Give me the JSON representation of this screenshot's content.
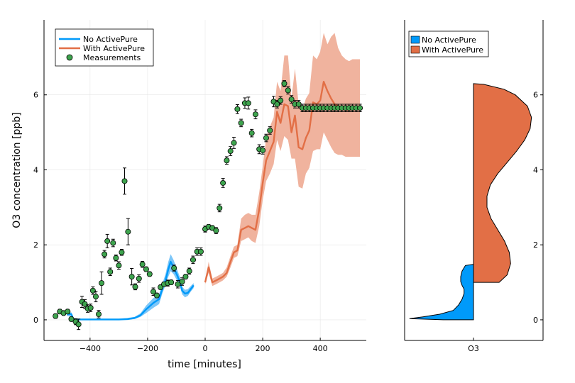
{
  "chart_data": [
    {
      "type": "line",
      "xlabel": "time [minutes]",
      "ylabel": "O3 concentration [ppb]",
      "xlim": [
        -560,
        560
      ],
      "ylim": [
        -0.55,
        8.0
      ],
      "xticks": [
        -400,
        -200,
        0,
        200,
        400
      ],
      "xtick_labels": [
        "−400",
        "−200",
        "0",
        "200",
        "400"
      ],
      "yticks": [
        0,
        2,
        4,
        6
      ],
      "ytick_labels": [
        "0",
        "2",
        "4",
        "6"
      ],
      "grid": true,
      "legend_position": "top-left",
      "legend": [
        "No ActivePure",
        "With ActivePure",
        "Measurements"
      ],
      "colors": {
        "no_activepure": "#009AFA",
        "with_activepure": "#E26F46",
        "measurements": "#3EA44E",
        "band_no": "#7CC6F8",
        "band_with": "#F0B39E"
      },
      "series": [
        {
          "name": "No ActivePure",
          "x": [
            -480,
            -465,
            -458,
            -445,
            -400,
            -300,
            -270,
            -245,
            -225,
            -205,
            -180,
            -160,
            -148,
            -138,
            -128,
            -120,
            -110,
            -98,
            -88,
            -80,
            -70,
            -60,
            -50,
            -40
          ],
          "y": [
            0.15,
            0.15,
            0.02,
            0.01,
            0.01,
            0.01,
            0.02,
            0.05,
            0.12,
            0.28,
            0.45,
            0.55,
            0.85,
            1.05,
            1.35,
            1.55,
            1.4,
            1.2,
            1.02,
            0.78,
            0.7,
            0.72,
            0.82,
            0.92
          ],
          "lower": [
            0.1,
            0.1,
            0.0,
            0.0,
            0.0,
            0.0,
            0.0,
            0.02,
            0.08,
            0.18,
            0.32,
            0.42,
            0.72,
            0.92,
            1.15,
            1.3,
            1.22,
            1.05,
            0.9,
            0.68,
            0.6,
            0.64,
            0.75,
            0.85
          ],
          "upper": [
            0.2,
            0.2,
            0.05,
            0.03,
            0.03,
            0.03,
            0.05,
            0.08,
            0.17,
            0.38,
            0.58,
            0.68,
            0.98,
            1.22,
            1.55,
            1.75,
            1.6,
            1.35,
            1.15,
            0.88,
            0.8,
            0.82,
            0.9,
            0.98
          ]
        },
        {
          "name": "With ActivePure",
          "x": [
            0,
            12,
            25,
            38,
            50,
            62,
            75,
            88,
            100,
            112,
            125,
            138,
            150,
            162,
            175,
            188,
            200,
            212,
            225,
            238,
            250,
            262,
            275,
            288,
            300,
            312,
            325,
            338,
            350,
            362,
            375,
            388,
            400,
            412,
            425,
            438,
            450,
            462,
            475,
            488,
            500,
            512,
            525,
            538
          ],
          "y": [
            1.0,
            1.4,
            1.0,
            1.05,
            1.1,
            1.15,
            1.25,
            1.55,
            1.8,
            1.85,
            2.4,
            2.45,
            2.5,
            2.45,
            2.4,
            2.95,
            3.65,
            4.25,
            4.5,
            4.75,
            5.55,
            5.25,
            5.75,
            5.7,
            5.0,
            5.45,
            4.6,
            4.55,
            4.85,
            5.05,
            5.8,
            5.75,
            5.85,
            6.35,
            6.1,
            5.9,
            5.75,
            5.7,
            5.65,
            5.6,
            5.6,
            5.65,
            5.65,
            5.65
          ],
          "lower": [
            0.95,
            1.25,
            0.9,
            0.95,
            1.0,
            1.05,
            1.15,
            1.4,
            1.65,
            1.7,
            2.1,
            2.15,
            2.2,
            2.1,
            2.05,
            2.5,
            3.2,
            3.7,
            3.9,
            4.15,
            4.8,
            4.5,
            4.9,
            4.8,
            4.3,
            4.3,
            3.55,
            3.5,
            3.9,
            4.05,
            4.5,
            4.55,
            4.55,
            5.0,
            4.8,
            4.6,
            4.45,
            4.4,
            4.4,
            4.35,
            4.35,
            4.35,
            4.35,
            4.35
          ],
          "upper": [
            1.05,
            1.55,
            1.1,
            1.15,
            1.2,
            1.25,
            1.4,
            1.7,
            1.95,
            2.0,
            2.7,
            2.8,
            2.85,
            2.8,
            2.8,
            3.4,
            4.1,
            4.85,
            5.15,
            5.4,
            6.35,
            6.1,
            7.05,
            7.05,
            5.9,
            6.7,
            5.75,
            5.6,
            5.9,
            6.05,
            7.05,
            6.95,
            7.15,
            7.65,
            7.35,
            7.55,
            7.65,
            7.25,
            7.05,
            6.95,
            6.9,
            6.95,
            6.95,
            6.95
          ]
        },
        {
          "name": "Measurements",
          "x": [
            -520,
            -505,
            -492,
            -478,
            -465,
            -450,
            -440,
            -428,
            -418,
            -408,
            -398,
            -390,
            -380,
            -370,
            -360,
            -350,
            -340,
            -330,
            -320,
            -310,
            -300,
            -290,
            -280,
            -268,
            -255,
            -243,
            -230,
            -218,
            -205,
            -193,
            -180,
            -168,
            -155,
            -143,
            -130,
            -118,
            -108,
            -95,
            -80,
            -68,
            -55,
            -42,
            -28,
            -15,
            0,
            12,
            25,
            38,
            50,
            62,
            75,
            88,
            100,
            112,
            125,
            138,
            150,
            162,
            175,
            188,
            200,
            212,
            225,
            238,
            250,
            262,
            275,
            288,
            300,
            312,
            325,
            338,
            350,
            362,
            375,
            388,
            400,
            412,
            425,
            438,
            450,
            462,
            475,
            488,
            500,
            512,
            525,
            538
          ],
          "y": [
            0.1,
            0.22,
            0.18,
            0.22,
            0.02,
            -0.05,
            -0.12,
            0.48,
            0.42,
            0.3,
            0.32,
            0.78,
            0.62,
            0.15,
            0.98,
            1.75,
            2.1,
            1.28,
            2.05,
            1.65,
            1.45,
            1.8,
            3.7,
            2.35,
            1.15,
            0.88,
            1.1,
            1.48,
            1.35,
            1.22,
            0.75,
            0.65,
            0.87,
            0.95,
            0.98,
            1.0,
            1.38,
            0.95,
            1.02,
            1.15,
            1.3,
            1.6,
            1.82,
            1.82,
            2.42,
            2.48,
            2.45,
            2.38,
            2.98,
            3.65,
            4.25,
            4.5,
            4.72,
            5.62,
            5.25,
            5.78,
            5.78,
            4.98,
            5.48,
            4.55,
            4.52,
            4.85,
            5.05,
            5.82,
            5.75,
            5.85,
            6.3,
            6.12,
            5.88,
            5.75,
            5.75,
            5.65,
            5.65,
            5.65,
            5.65,
            5.65,
            5.65,
            5.65,
            5.65,
            5.65,
            5.65,
            5.65,
            5.65,
            5.65,
            5.65,
            5.65,
            5.65,
            5.65
          ],
          "err": [
            0.06,
            0.06,
            0.06,
            0.06,
            0.06,
            0.08,
            0.14,
            0.15,
            0.12,
            0.1,
            0.1,
            0.1,
            0.14,
            0.1,
            0.3,
            0.1,
            0.18,
            0.1,
            0.1,
            0.08,
            0.1,
            0.08,
            0.35,
            0.35,
            0.22,
            0.08,
            0.1,
            0.08,
            0.06,
            0.06,
            0.1,
            0.06,
            0.06,
            0.06,
            0.08,
            0.06,
            0.08,
            0.1,
            0.1,
            0.06,
            0.08,
            0.1,
            0.1,
            0.1,
            0.08,
            0.06,
            0.06,
            0.08,
            0.1,
            0.12,
            0.1,
            0.12,
            0.15,
            0.12,
            0.1,
            0.14,
            0.16,
            0.1,
            0.12,
            0.12,
            0.1,
            0.1,
            0.1,
            0.14,
            0.1,
            0.1,
            0.08,
            0.1,
            0.1,
            0.1,
            0.1,
            0.1,
            0.1,
            0.1,
            0.1,
            0.1,
            0.1,
            0.1,
            0.1,
            0.1,
            0.1,
            0.1,
            0.1,
            0.1,
            0.1,
            0.1,
            0.1,
            0.1
          ]
        }
      ]
    },
    {
      "type": "violin",
      "xlabel": "",
      "ylabel": "",
      "categories": [
        "O3"
      ],
      "ylim": [
        -0.55,
        8.0
      ],
      "yticks": [
        0,
        2,
        4,
        6
      ],
      "ytick_labels": [
        "0",
        "2",
        "4",
        "6"
      ],
      "legend_position": "top-left",
      "legend": [
        "No ActivePure",
        "With ActivePure"
      ],
      "series": [
        {
          "name": "No ActivePure",
          "side": "left",
          "y": [
            0.0,
            0.03,
            0.08,
            0.15,
            0.25,
            0.4,
            0.55,
            0.7,
            0.82,
            0.92,
            1.02,
            1.15,
            1.3,
            1.45,
            1.48
          ],
          "width": [
            0.45,
            0.95,
            0.75,
            0.5,
            0.3,
            0.22,
            0.17,
            0.14,
            0.14,
            0.17,
            0.19,
            0.19,
            0.17,
            0.12,
            0.0
          ]
        },
        {
          "name": "With ActivePure",
          "side": "right",
          "y": [
            1.0,
            1.2,
            1.5,
            1.8,
            2.1,
            2.4,
            2.7,
            3.0,
            3.3,
            3.6,
            3.9,
            4.2,
            4.5,
            4.8,
            5.1,
            5.4,
            5.7,
            6.0,
            6.15,
            6.28,
            6.3
          ],
          "width": [
            0.38,
            0.5,
            0.55,
            0.53,
            0.46,
            0.36,
            0.26,
            0.2,
            0.2,
            0.25,
            0.36,
            0.5,
            0.64,
            0.76,
            0.84,
            0.86,
            0.8,
            0.62,
            0.45,
            0.15,
            0.0
          ]
        }
      ]
    }
  ]
}
